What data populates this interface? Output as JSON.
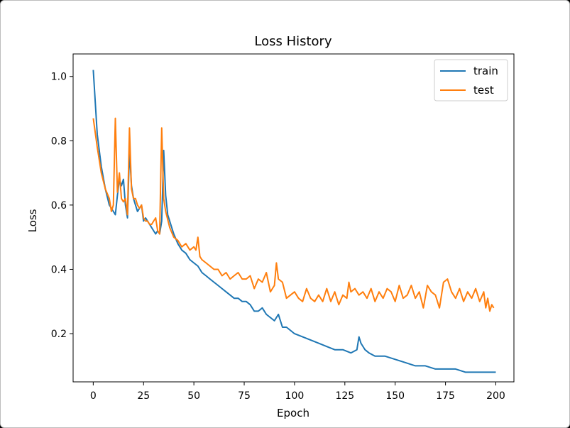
{
  "chart_data": {
    "type": "line",
    "title": "Loss History",
    "xlabel": "Epoch",
    "ylabel": "Loss",
    "xlim": [
      -10,
      209
    ],
    "ylim": [
      0.05,
      1.07
    ],
    "xticks": [
      0,
      25,
      50,
      75,
      100,
      125,
      150,
      175,
      200
    ],
    "yticks": [
      0.2,
      0.4,
      0.6,
      0.8,
      1.0
    ],
    "xtick_labels": [
      "0",
      "25",
      "50",
      "75",
      "100",
      "125",
      "150",
      "175",
      "200"
    ],
    "ytick_labels": [
      "0.2",
      "0.4",
      "0.6",
      "0.8",
      "1.0"
    ],
    "grid": false,
    "legend_position": "top-right",
    "series": [
      {
        "name": "train",
        "color": "#1f77b4",
        "x": [
          0,
          2,
          4,
          6,
          8,
          10,
          11,
          12,
          13,
          14,
          15,
          16,
          17,
          18,
          19,
          20,
          21,
          22,
          23,
          24,
          25,
          26,
          27,
          28,
          29,
          30,
          31,
          32,
          33,
          34,
          35,
          36,
          37,
          38,
          39,
          40,
          42,
          44,
          46,
          48,
          50,
          52,
          54,
          56,
          58,
          60,
          62,
          64,
          66,
          68,
          70,
          72,
          74,
          76,
          78,
          80,
          82,
          84,
          86,
          88,
          90,
          92,
          94,
          96,
          98,
          100,
          104,
          108,
          112,
          116,
          120,
          124,
          128,
          131,
          132,
          133,
          135,
          137,
          140,
          145,
          150,
          155,
          160,
          165,
          170,
          175,
          180,
          185,
          190,
          195,
          200
        ],
        "values": [
          1.02,
          0.82,
          0.72,
          0.65,
          0.6,
          0.58,
          0.57,
          0.63,
          0.68,
          0.66,
          0.68,
          0.6,
          0.56,
          0.77,
          0.66,
          0.62,
          0.6,
          0.58,
          0.59,
          0.6,
          0.55,
          0.56,
          0.55,
          0.54,
          0.53,
          0.52,
          0.51,
          0.52,
          0.51,
          0.55,
          0.77,
          0.63,
          0.57,
          0.55,
          0.53,
          0.51,
          0.48,
          0.46,
          0.45,
          0.43,
          0.42,
          0.41,
          0.39,
          0.38,
          0.37,
          0.36,
          0.35,
          0.34,
          0.33,
          0.32,
          0.31,
          0.31,
          0.3,
          0.3,
          0.29,
          0.27,
          0.27,
          0.28,
          0.26,
          0.25,
          0.24,
          0.26,
          0.22,
          0.22,
          0.21,
          0.2,
          0.19,
          0.18,
          0.17,
          0.16,
          0.15,
          0.15,
          0.14,
          0.15,
          0.19,
          0.17,
          0.15,
          0.14,
          0.13,
          0.13,
          0.12,
          0.11,
          0.1,
          0.1,
          0.09,
          0.09,
          0.09,
          0.08,
          0.08,
          0.08,
          0.08
        ]
      },
      {
        "name": "test",
        "color": "#ff7f0e",
        "x": [
          0,
          2,
          4,
          6,
          8,
          9,
          10,
          11,
          12,
          13,
          14,
          15,
          16,
          17,
          18,
          19,
          20,
          21,
          22,
          23,
          24,
          25,
          26,
          27,
          28,
          29,
          30,
          31,
          32,
          33,
          34,
          35,
          36,
          38,
          40,
          42,
          44,
          46,
          48,
          50,
          51,
          52,
          53,
          54,
          56,
          58,
          60,
          62,
          64,
          66,
          68,
          70,
          72,
          74,
          76,
          78,
          80,
          82,
          84,
          86,
          88,
          90,
          91,
          92,
          94,
          96,
          98,
          100,
          102,
          104,
          106,
          108,
          110,
          112,
          114,
          116,
          118,
          120,
          122,
          124,
          126,
          127,
          128,
          130,
          132,
          134,
          136,
          138,
          140,
          142,
          144,
          146,
          148,
          150,
          152,
          154,
          156,
          158,
          160,
          162,
          164,
          166,
          168,
          170,
          172,
          174,
          176,
          178,
          180,
          182,
          184,
          186,
          188,
          190,
          192,
          194,
          195,
          196,
          197,
          198,
          199
        ],
        "values": [
          0.87,
          0.78,
          0.7,
          0.65,
          0.62,
          0.58,
          0.6,
          0.87,
          0.64,
          0.7,
          0.62,
          0.61,
          0.62,
          0.57,
          0.84,
          0.65,
          0.62,
          0.62,
          0.6,
          0.59,
          0.6,
          0.56,
          0.55,
          0.55,
          0.54,
          0.54,
          0.55,
          0.56,
          0.52,
          0.51,
          0.84,
          0.62,
          0.58,
          0.53,
          0.5,
          0.49,
          0.47,
          0.48,
          0.46,
          0.47,
          0.46,
          0.5,
          0.44,
          0.43,
          0.42,
          0.41,
          0.4,
          0.4,
          0.38,
          0.39,
          0.37,
          0.38,
          0.39,
          0.37,
          0.37,
          0.38,
          0.34,
          0.37,
          0.36,
          0.39,
          0.33,
          0.35,
          0.42,
          0.37,
          0.36,
          0.31,
          0.32,
          0.33,
          0.31,
          0.3,
          0.34,
          0.31,
          0.3,
          0.32,
          0.3,
          0.34,
          0.3,
          0.33,
          0.29,
          0.32,
          0.31,
          0.36,
          0.33,
          0.34,
          0.32,
          0.33,
          0.31,
          0.34,
          0.3,
          0.33,
          0.31,
          0.34,
          0.33,
          0.3,
          0.35,
          0.31,
          0.32,
          0.35,
          0.31,
          0.33,
          0.28,
          0.35,
          0.33,
          0.32,
          0.28,
          0.36,
          0.37,
          0.33,
          0.31,
          0.34,
          0.3,
          0.33,
          0.31,
          0.34,
          0.3,
          0.33,
          0.28,
          0.31,
          0.27,
          0.29,
          0.28
        ]
      }
    ]
  }
}
